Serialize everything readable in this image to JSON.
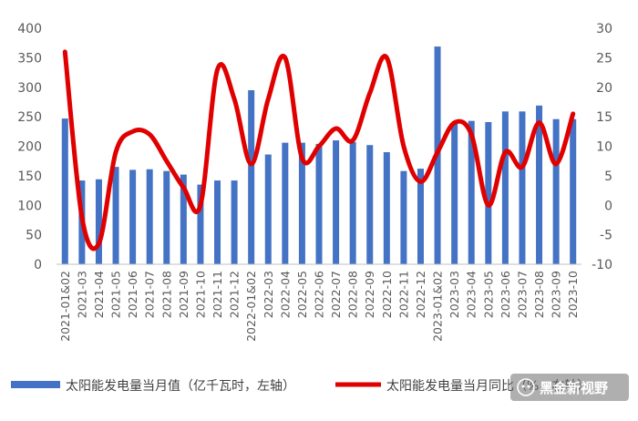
{
  "chart_data": {
    "type": "bar+line",
    "categories": [
      "2021-01&02",
      "2021-03",
      "2021-04",
      "2021-05",
      "2021-06",
      "2021-07",
      "2021-08",
      "2021-09",
      "2021-10",
      "2021-11",
      "2021-12",
      "2022-01&02",
      "2022-03",
      "2022-04",
      "2022-05",
      "2022-06",
      "2022-07",
      "2022-08",
      "2022-09",
      "2022-10",
      "2022-11",
      "2022-12",
      "2023-01&02",
      "2023-03",
      "2023-04",
      "2023-05",
      "2023-06",
      "2023-07",
      "2023-08",
      "2023-09",
      "2023-10"
    ],
    "series": [
      {
        "name": "太阳能发电量当月值（亿千瓦时，左轴）",
        "type": "bar",
        "axis": "left",
        "color": "#4472C4",
        "values": [
          247,
          142,
          144,
          165,
          160,
          161,
          158,
          152,
          135,
          142,
          142,
          295,
          186,
          206,
          206,
          204,
          210,
          207,
          202,
          190,
          158,
          162,
          369,
          240,
          243,
          241,
          259,
          259,
          269,
          246,
          246
        ]
      },
      {
        "name": "太阳能发电量当月同比（%，右轴）",
        "type": "line",
        "axis": "right",
        "color": "#E00000",
        "values": [
          26,
          -2,
          -6.5,
          9,
          12.5,
          12,
          7.5,
          3,
          0,
          23,
          18,
          7,
          18,
          25,
          8,
          10,
          13,
          11,
          19,
          25,
          10,
          4,
          9,
          14,
          12,
          0,
          9,
          6.5,
          14,
          7,
          15.5
        ]
      }
    ],
    "left_axis": {
      "min": 0,
      "max": 400,
      "ticks": [
        0,
        50,
        100,
        150,
        200,
        250,
        300,
        350,
        400
      ]
    },
    "right_axis": {
      "min": -10,
      "max": 30,
      "ticks": [
        -10,
        -5,
        0,
        5,
        10,
        15,
        20,
        25,
        30
      ]
    },
    "grid": false,
    "legend_position": "bottom"
  },
  "legend": {
    "bar_label": "太阳能发电量当月值（亿千瓦时，左轴）",
    "line_label": "太阳能发电量当月同比（%，右轴）"
  },
  "watermark": {
    "text": "黑金新视野"
  },
  "colors": {
    "bar": "#4472C4",
    "line": "#E00000",
    "axis": "#BFBFBF",
    "text": "#595959"
  }
}
